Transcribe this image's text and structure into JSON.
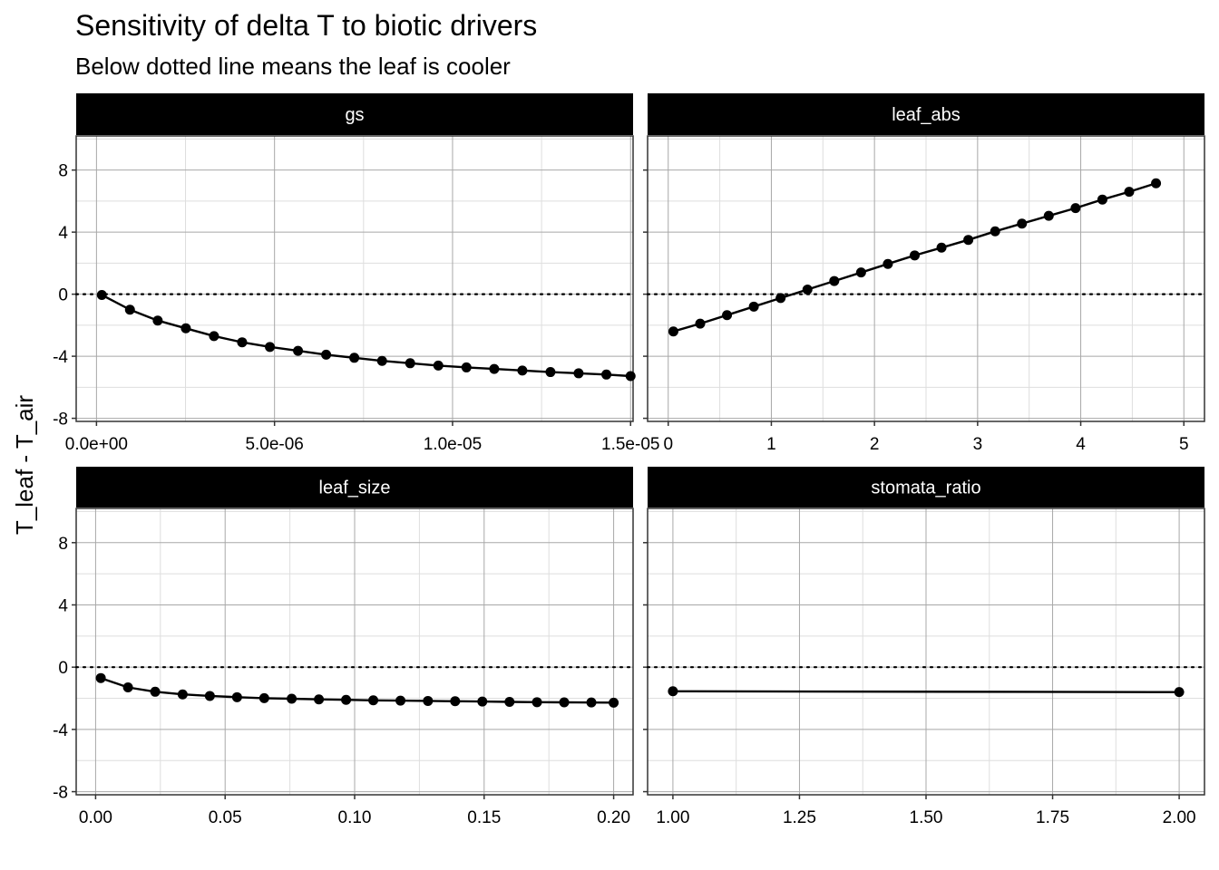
{
  "title": "Sensitivity of delta T to biotic drivers",
  "subtitle": "Below dotted line means the leaf is cooler",
  "chart_data": {
    "type": "line",
    "title": "Sensitivity of delta T to biotic drivers",
    "subtitle": "Below dotted line means the leaf is cooler",
    "ylabel": "T_leaf - T_air",
    "xlabel": "",
    "grid": true,
    "reference_line": {
      "y": 0,
      "style": "dotted"
    },
    "y_ticks": [
      8,
      4,
      0,
      -4,
      -8
    ],
    "y_tick_labels": [
      "8",
      "4",
      "0",
      "-4",
      "-8"
    ],
    "ylim": [
      -8.2,
      10.2
    ],
    "colors": {
      "line": "#000000",
      "strip_bg": "#000000",
      "strip_text": "#ffffff",
      "grid_major": "#a8a8a8",
      "grid_minor": "#dedede"
    },
    "panels": [
      {
        "name": "gs",
        "xlim": [
          -5.7e-07,
          1.507e-05
        ],
        "x_ticks": [
          0,
          5e-06,
          1e-05,
          1.5e-05
        ],
        "x_tick_labels": [
          "0.0e+00",
          "5.0e-06",
          "1.0e-05",
          "1.5e-05"
        ],
        "x": [
          1.5e-07,
          9.4e-07,
          1.72e-06,
          2.51e-06,
          3.3e-06,
          4.09e-06,
          4.87e-06,
          5.66e-06,
          6.45e-06,
          7.24e-06,
          8.02e-06,
          8.81e-06,
          9.6e-06,
          1.039e-05,
          1.117e-05,
          1.196e-05,
          1.275e-05,
          1.354e-05,
          1.432e-05,
          1.5e-05
        ],
        "y": [
          -0.05,
          -1.0,
          -1.7,
          -2.2,
          -2.7,
          -3.1,
          -3.4,
          -3.65,
          -3.9,
          -4.1,
          -4.3,
          -4.45,
          -4.6,
          -4.72,
          -4.82,
          -4.92,
          -5.02,
          -5.1,
          -5.18,
          -5.28
        ]
      },
      {
        "name": "leaf_abs",
        "xlim": [
          -0.2,
          5.2
        ],
        "x_ticks": [
          0,
          1,
          2,
          3,
          4,
          5
        ],
        "x_tick_labels": [
          "0",
          "1",
          "2",
          "3",
          "4",
          "5"
        ],
        "x": [
          0.05,
          0.31,
          0.57,
          0.83,
          1.09,
          1.35,
          1.61,
          1.87,
          2.13,
          2.39,
          2.65,
          2.91,
          3.17,
          3.43,
          3.69,
          3.95,
          4.21,
          4.47,
          4.73
        ],
        "y": [
          -2.4,
          -1.9,
          -1.35,
          -0.8,
          -0.25,
          0.3,
          0.85,
          1.4,
          1.95,
          2.5,
          3.0,
          3.5,
          4.05,
          4.55,
          5.05,
          5.55,
          6.1,
          6.6,
          7.15
        ]
      },
      {
        "name": "leaf_size",
        "xlim": [
          -0.0075,
          0.2075
        ],
        "x_ticks": [
          0.0,
          0.05,
          0.1,
          0.15,
          0.2
        ],
        "x_tick_labels": [
          "0.00",
          "0.05",
          "0.10",
          "0.15",
          "0.20"
        ],
        "x": [
          0.002,
          0.0125,
          0.023,
          0.0336,
          0.0441,
          0.0546,
          0.0651,
          0.0757,
          0.0862,
          0.0967,
          0.1072,
          0.1177,
          0.1283,
          0.1388,
          0.1493,
          0.1598,
          0.1704,
          0.1809,
          0.1914,
          0.2
        ],
        "y": [
          -0.7,
          -1.3,
          -1.58,
          -1.75,
          -1.85,
          -1.93,
          -1.99,
          -2.03,
          -2.07,
          -2.1,
          -2.13,
          -2.15,
          -2.17,
          -2.19,
          -2.21,
          -2.23,
          -2.25,
          -2.26,
          -2.27,
          -2.28
        ]
      },
      {
        "name": "stomata_ratio",
        "xlim": [
          0.95,
          2.05
        ],
        "x_ticks": [
          1.0,
          1.25,
          1.5,
          1.75,
          2.0
        ],
        "x_tick_labels": [
          "1.00",
          "1.25",
          "1.50",
          "1.75",
          "2.00"
        ],
        "x": [
          1.0,
          2.0
        ],
        "y": [
          -1.55,
          -1.6
        ]
      }
    ]
  }
}
